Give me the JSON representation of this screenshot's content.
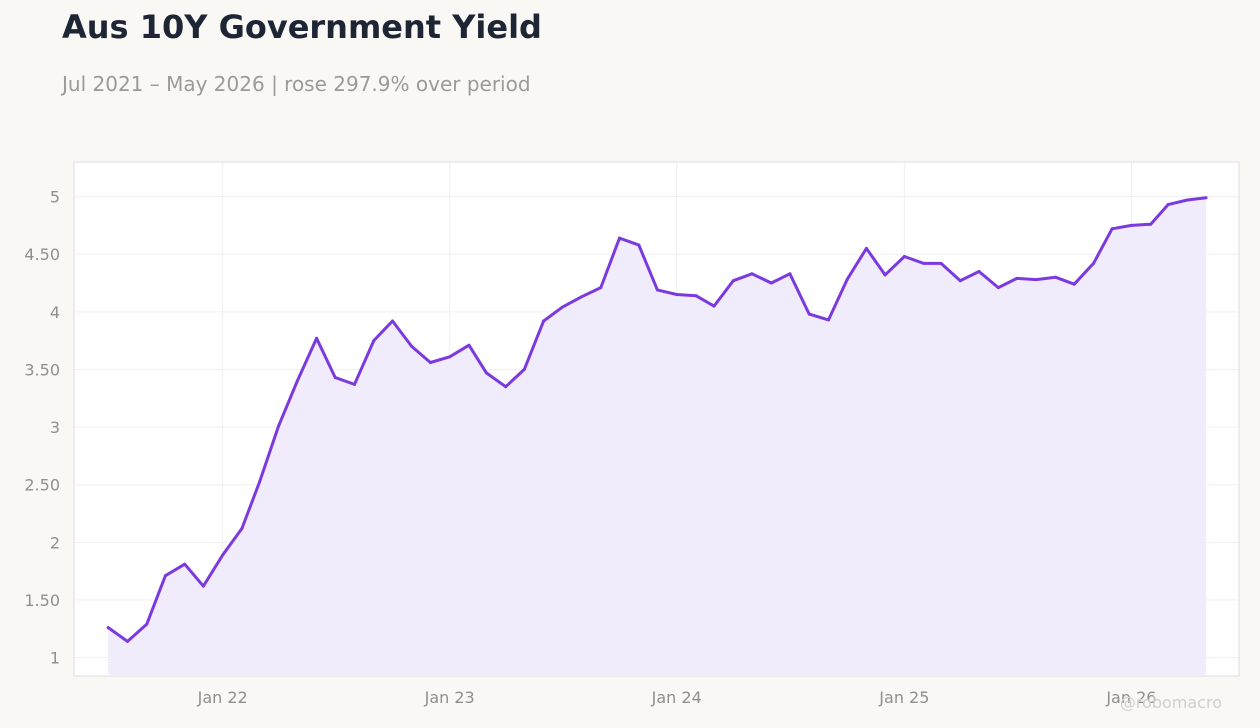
{
  "title": "Aus 10Y Government Yield",
  "subtitle": "Jul 2021 – May 2026 | rose 297.9% over period",
  "watermark": "@robomacro",
  "colors": {
    "line": "#7b3ae0",
    "area": "#f1ecfc",
    "background": "#f9f8f5",
    "plot_background": "#ffffff",
    "grid": "#efefef",
    "tick_text": "#8f8f8f"
  },
  "chart_data": {
    "type": "area",
    "title": "Aus 10Y Government Yield",
    "subtitle": "Jul 2021 – May 2026 | rose 297.9% over period",
    "xlabel": "",
    "ylabel": "",
    "ylim": [
      0.84,
      5.3
    ],
    "xlim": [
      "2021-05-07",
      "2026-06-23"
    ],
    "grid": true,
    "legend": "none",
    "x_ticks": [
      {
        "date": "2022-01-01",
        "label": "Jan 22"
      },
      {
        "date": "2023-01-01",
        "label": "Jan 23"
      },
      {
        "date": "2024-01-01",
        "label": "Jan 24"
      },
      {
        "date": "2025-01-01",
        "label": "Jan 25"
      },
      {
        "date": "2026-01-01",
        "label": "Jan 26"
      }
    ],
    "y_ticks": [
      {
        "value": 1,
        "label": "1"
      },
      {
        "value": 1.5,
        "label": "1.50"
      },
      {
        "value": 2,
        "label": "2"
      },
      {
        "value": 2.5,
        "label": "2.50"
      },
      {
        "value": 3,
        "label": "3"
      },
      {
        "value": 3.5,
        "label": "3.50"
      },
      {
        "value": 4,
        "label": "4"
      },
      {
        "value": 4.5,
        "label": "4.50"
      },
      {
        "value": 5,
        "label": "5"
      }
    ],
    "x": [
      "2021-07-01",
      "2021-08-01",
      "2021-09-01",
      "2021-10-01",
      "2021-11-01",
      "2021-12-01",
      "2022-01-01",
      "2022-02-01",
      "2022-03-01",
      "2022-04-01",
      "2022-05-01",
      "2022-06-01",
      "2022-07-01",
      "2022-08-01",
      "2022-09-01",
      "2022-10-01",
      "2022-11-01",
      "2022-12-01",
      "2023-01-01",
      "2023-02-01",
      "2023-03-01",
      "2023-04-01",
      "2023-05-01",
      "2023-06-01",
      "2023-07-01",
      "2023-08-01",
      "2023-09-01",
      "2023-10-01",
      "2023-11-01",
      "2023-12-01",
      "2024-01-01",
      "2024-02-01",
      "2024-03-01",
      "2024-04-01",
      "2024-05-01",
      "2024-06-01",
      "2024-07-01",
      "2024-08-01",
      "2024-09-01",
      "2024-10-01",
      "2024-11-01",
      "2024-12-01",
      "2025-01-01",
      "2025-02-01",
      "2025-03-01",
      "2025-04-01",
      "2025-05-01",
      "2025-06-01",
      "2025-07-01",
      "2025-08-01",
      "2025-09-01",
      "2025-10-01",
      "2025-11-01",
      "2025-12-01",
      "2026-01-01",
      "2026-02-01",
      "2026-03-01",
      "2026-04-01",
      "2026-05-01"
    ],
    "series": [
      {
        "values": [
          1.26,
          1.14,
          1.29,
          1.71,
          1.81,
          1.62,
          1.89,
          2.12,
          2.52,
          3.01,
          3.4,
          3.77,
          3.43,
          3.37,
          3.75,
          3.92,
          3.7,
          3.56,
          3.61,
          3.71,
          3.47,
          3.35,
          3.5,
          3.92,
          4.04,
          4.13,
          4.21,
          4.64,
          4.58,
          4.19,
          4.15,
          4.14,
          4.05,
          4.27,
          4.33,
          4.25,
          4.33,
          3.98,
          3.93,
          4.28,
          4.55,
          4.32,
          4.48,
          4.42,
          4.42,
          4.27,
          4.35,
          4.21,
          4.29,
          4.28,
          4.3,
          4.24,
          4.42,
          4.72,
          4.75,
          4.76,
          4.93,
          4.97,
          4.99
        ]
      }
    ]
  }
}
